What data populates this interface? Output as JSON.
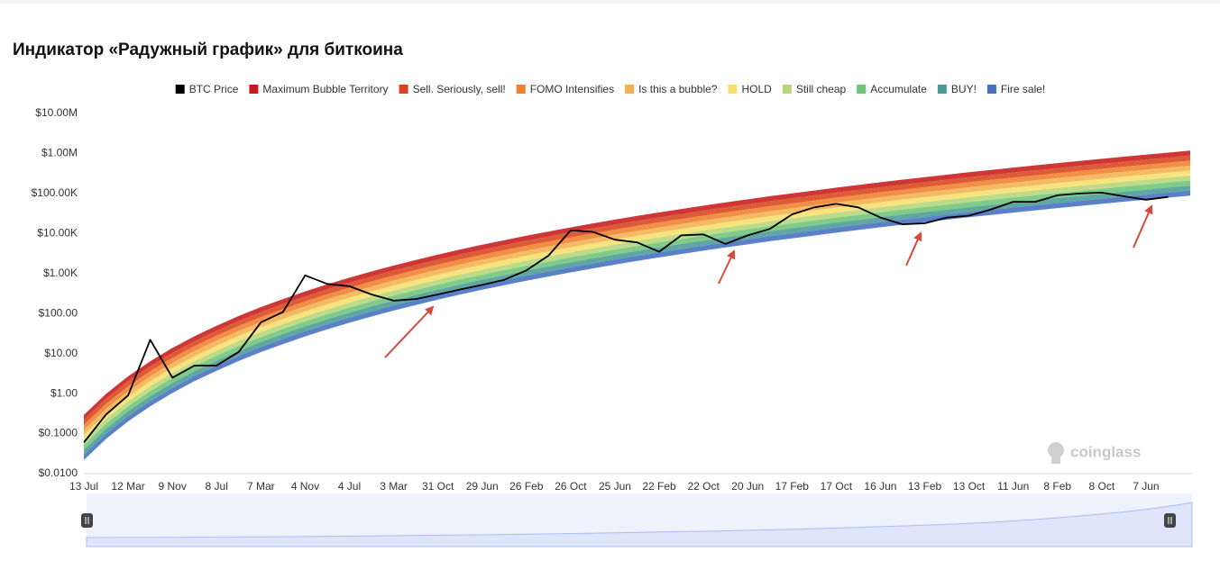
{
  "chart_data": {
    "type": "area",
    "title": "Индикатор «Радужный график» для биткоина",
    "watermark": "coinglass",
    "yscale": "log",
    "grid": false,
    "legend": "top",
    "ylim": [
      0.01,
      10000000
    ],
    "yticks": [
      {
        "value": 0.01,
        "label": "$0.0100"
      },
      {
        "value": 0.1,
        "label": "$0.1000"
      },
      {
        "value": 1,
        "label": "$1.00"
      },
      {
        "value": 10,
        "label": "$10.00"
      },
      {
        "value": 100,
        "label": "$100.00"
      },
      {
        "value": 1000,
        "label": "$1.00K"
      },
      {
        "value": 10000,
        "label": "$10.00K"
      },
      {
        "value": 100000,
        "label": "$100.00K"
      },
      {
        "value": 1000000,
        "label": "$1.00M"
      },
      {
        "value": 10000000,
        "label": "$10.00M"
      }
    ],
    "categories": [
      "13 Jul",
      null,
      "12 Mar",
      null,
      "9 Nov",
      null,
      "8 Jul",
      null,
      "7 Mar",
      null,
      "4 Nov",
      null,
      "4 Jul",
      null,
      "3 Mar",
      null,
      "31 Oct",
      null,
      "29 Jun",
      null,
      "26 Feb",
      null,
      "26 Oct",
      null,
      "25 Jun",
      null,
      "22 Feb",
      null,
      "22 Oct",
      null,
      "20 Jun",
      null,
      "17 Feb",
      null,
      "17 Oct",
      null,
      "16 Jun",
      null,
      "13 Feb",
      null,
      "13 Oct",
      null,
      "11 Jun",
      null,
      "8 Feb",
      null,
      "8 Oct",
      null,
      "7 Jun",
      null,
      null
    ],
    "series": [
      {
        "name": "BTC Price",
        "color": "#000000",
        "type": "line",
        "values": [
          0.06,
          0.3,
          0.9,
          22,
          2.5,
          5,
          5,
          11,
          60,
          110,
          900,
          550,
          480,
          300,
          210,
          230,
          300,
          400,
          520,
          700,
          1200,
          2800,
          12000,
          11000,
          7000,
          6000,
          3500,
          9000,
          9500,
          5500,
          9000,
          13000,
          30000,
          45000,
          55000,
          45000,
          25000,
          17000,
          18000,
          25000,
          28000,
          40000,
          62000,
          62000,
          90000,
          100000,
          105000,
          85000,
          70000,
          82000,
          null
        ]
      },
      {
        "name": "Maximum Bubble Territory",
        "color": "#c81a1a",
        "values": [
          0.219,
          0.736,
          2.03,
          4.82,
          10.38,
          20.4,
          37.3,
          65.3,
          109,
          173,
          268,
          404,
          590,
          843,
          1190,
          1630,
          2220,
          2990,
          3930,
          5120,
          6620,
          8410,
          10690,
          13400,
          16710,
          20610,
          25230,
          30690,
          37330,
          44870,
          53580,
          64120,
          75510,
          89130,
          105200,
          122700,
          143200,
          166700,
          191900,
          221300,
          254700,
          291700,
          333400,
          379300,
          431500,
          487500,
          552100,
          623700,
          699800,
          787000,
          885100
        ]
      },
      {
        "name": "Sell. Seriously, sell!",
        "color": "#d9441c",
        "values": [
          0.164,
          0.552,
          1.52,
          3.61,
          7.78,
          15.3,
          28.0,
          49.0,
          81.7,
          130,
          201,
          303,
          442,
          632,
          892,
          1222,
          1665,
          2242,
          2947,
          3839,
          4964,
          6307,
          8016,
          10050,
          12530,
          15460,
          18920,
          23010,
          27990,
          33650,
          40180,
          48080,
          56630,
          66840,
          78890,
          92010,
          107400,
          125000,
          143900,
          166000,
          191000,
          218700,
          250000,
          284400,
          323600,
          365600,
          414000,
          467700,
          524800,
          590200,
          663700
        ]
      },
      {
        "name": "FOMO Intensifies",
        "color": "#f07f2e",
        "values": [
          0.123,
          0.414,
          1.14,
          2.71,
          5.84,
          11.5,
          21.0,
          36.7,
          61.3,
          97.3,
          151,
          227,
          332,
          474,
          669,
          917,
          1248,
          1681,
          2210,
          2879,
          3722,
          4729,
          6011,
          7535,
          9396,
          11590,
          14190,
          17260,
          20990,
          25230,
          30130,
          36050,
          42460,
          50120,
          59150,
          68990,
          80520,
          93740,
          107900,
          124400,
          143200,
          164000,
          187500,
          213300,
          242600,
          274100,
          310400,
          350700,
          393500,
          442500,
          497700
        ]
      },
      {
        "name": "Is this a bubble?",
        "color": "#f3b24f",
        "values": [
          0.0924,
          0.31,
          0.856,
          2.03,
          4.38,
          8.6,
          15.7,
          27.5,
          46.0,
          73.0,
          113,
          170,
          249,
          355,
          502,
          687,
          936,
          1261,
          1657,
          2159,
          2792,
          3546,
          4508,
          5651,
          7047,
          8691,
          10640,
          12940,
          15740,
          18920,
          22590,
          27040,
          31840,
          37590,
          44360,
          51740,
          60390,
          70300,
          80920,
          93320,
          107400,
          123000,
          140600,
          159900,
          182000,
          205600,
          232800,
          263000,
          295100,
          331900,
          373200
        ]
      },
      {
        "name": "HOLD",
        "color": "#f7e06c",
        "values": [
          0.0692,
          0.233,
          0.642,
          1.52,
          3.28,
          6.45,
          11.8,
          20.6,
          34.5,
          54.7,
          84.7,
          128,
          187,
          267,
          376,
          515,
          702,
          945,
          1243,
          1619,
          2093,
          2659,
          3380,
          4237,
          5284,
          6517,
          7978,
          9704,
          11800,
          14190,
          16940,
          20270,
          23880,
          28180,
          33260,
          38800,
          45280,
          52710,
          60680,
          69970,
          80540,
          92240,
          105400,
          119900,
          136400,
          154100,
          174600,
          197200,
          221300,
          248800,
          279900
        ]
      },
      {
        "name": "Still cheap",
        "color": "#b5d67a",
        "values": [
          0.0519,
          0.175,
          0.481,
          1.14,
          2.46,
          4.84,
          8.84,
          15.5,
          25.8,
          41.0,
          63.5,
          95.8,
          140,
          200,
          282,
          386,
          526,
          709,
          932,
          1214,
          1570,
          1994,
          2535,
          3177,
          3962,
          4887,
          5982,
          7277,
          8851,
          10640,
          12700,
          15200,
          17900,
          21130,
          24940,
          29090,
          33950,
          39520,
          45500,
          52470,
          60390,
          69160,
          79050,
          89930,
          102300,
          115600,
          130900,
          147900,
          165900,
          186600,
          209900
        ]
      },
      {
        "name": "Accumulate",
        "color": "#6cc47a",
        "values": [
          0.0389,
          0.131,
          0.361,
          0.857,
          1.85,
          3.63,
          6.63,
          11.6,
          19.4,
          30.8,
          47.7,
          71.8,
          105,
          150,
          212,
          290,
          395,
          532,
          699,
          910,
          1177,
          1495,
          1901,
          2383,
          2971,
          3664,
          4486,
          5457,
          6637,
          7978,
          9527,
          11400,
          13430,
          15850,
          18700,
          21820,
          25460,
          29640,
          34120,
          39350,
          45290,
          51860,
          59280,
          67440,
          76720,
          86680,
          98160,
          110900,
          124400,
          139900,
          157400
        ]
      },
      {
        "name": "BUY!",
        "color": "#4a9a96",
        "values": [
          0.0292,
          0.0982,
          0.271,
          0.643,
          1.38,
          2.72,
          4.98,
          8.71,
          14.5,
          23.1,
          35.8,
          53.9,
          78.7,
          112,
          159,
          217,
          296,
          399,
          524,
          683,
          883,
          1122,
          1426,
          1788,
          2229,
          2749,
          3366,
          4094,
          4980,
          5986,
          7148,
          8554,
          10070,
          11890,
          14030,
          16370,
          19100,
          22240,
          25600,
          29520,
          33980,
          38910,
          44480,
          50600,
          57560,
          65030,
          73650,
          83200,
          93350,
          104990,
          118070
        ]
      },
      {
        "name": "Fire sale!",
        "color": "#4370bf",
        "values": [
          0.0219,
          0.0736,
          0.203,
          0.482,
          1.038,
          2.04,
          3.73,
          6.53,
          10.9,
          17.3,
          26.8,
          40.4,
          59.0,
          84.3,
          119,
          163,
          222,
          299,
          393,
          512,
          662,
          841,
          1069,
          1340,
          1671,
          2061,
          2523,
          3069,
          3733,
          4487,
          5358,
          6412,
          7551,
          8913,
          10520,
          12270,
          14320,
          16670,
          19190,
          22130,
          25470,
          29170,
          33340,
          37930,
          43150,
          48750,
          55210,
          62370,
          69980,
          78700,
          88510
        ]
      }
    ]
  }
}
